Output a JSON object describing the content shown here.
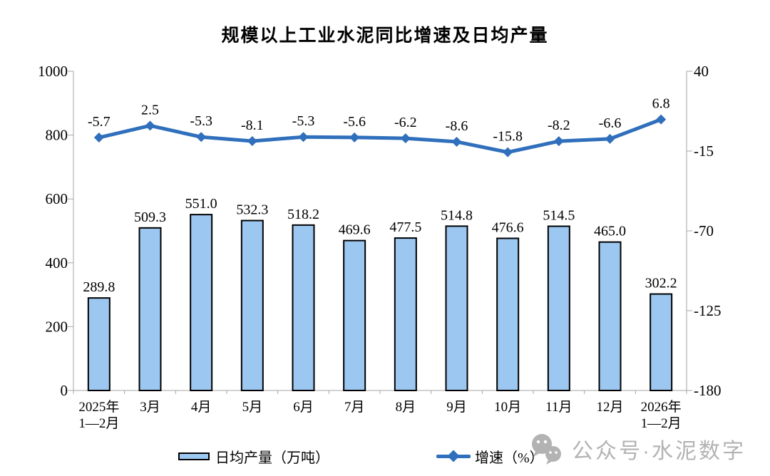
{
  "chart_data": {
    "type": "bar",
    "title": "规模以上工业水泥同比增速及日均产量",
    "categories": [
      "2025年\n1—2月",
      "3月",
      "4月",
      "5月",
      "6月",
      "7月",
      "8月",
      "9月",
      "10月",
      "11月",
      "12月",
      "2026年\n1—2月"
    ],
    "series": [
      {
        "name": "日均产量（万吨）",
        "type": "bar",
        "axis": "left",
        "values": [
          289.8,
          509.3,
          551.0,
          532.3,
          518.2,
          469.6,
          477.5,
          514.8,
          476.6,
          514.5,
          465.0,
          302.2
        ],
        "labels": [
          "289.8",
          "509.3",
          "551.0",
          "532.3",
          "518.2",
          "469.6",
          "477.5",
          "514.8",
          "476.6",
          "514.5",
          "465.0",
          "302.2"
        ]
      },
      {
        "name": "增速（%）",
        "type": "line",
        "axis": "right",
        "values": [
          -5.7,
          2.5,
          -5.3,
          -8.1,
          -5.3,
          -5.6,
          -6.2,
          -8.6,
          -15.8,
          -8.2,
          -6.6,
          6.8
        ],
        "labels": [
          "-5.7",
          "2.5",
          "-5.3",
          "-8.1",
          "-5.3",
          "-5.6",
          "-6.2",
          "-8.6",
          "-15.8",
          "-8.2",
          "-6.6",
          "6.8"
        ]
      }
    ],
    "left_axis": {
      "min": 0,
      "max": 1000,
      "ticks": [
        0,
        200,
        400,
        600,
        800,
        1000
      ]
    },
    "right_axis": {
      "min": -180,
      "max": 40,
      "ticks": [
        40,
        -15,
        -70,
        -125,
        -180
      ]
    },
    "grid": false,
    "legend_position": "bottom",
    "colors": {
      "bar_fill": "#9CC7F0",
      "bar_border": "#000000",
      "line": "#2F6FBC",
      "axis": "#a6a6a6",
      "text": "#000000",
      "watermark": "#b3b3b3"
    }
  },
  "legend": {
    "bar_label": "日均产量（万吨）",
    "line_label": "增速（%）"
  },
  "watermark": {
    "text": "公众号·水泥数字"
  }
}
